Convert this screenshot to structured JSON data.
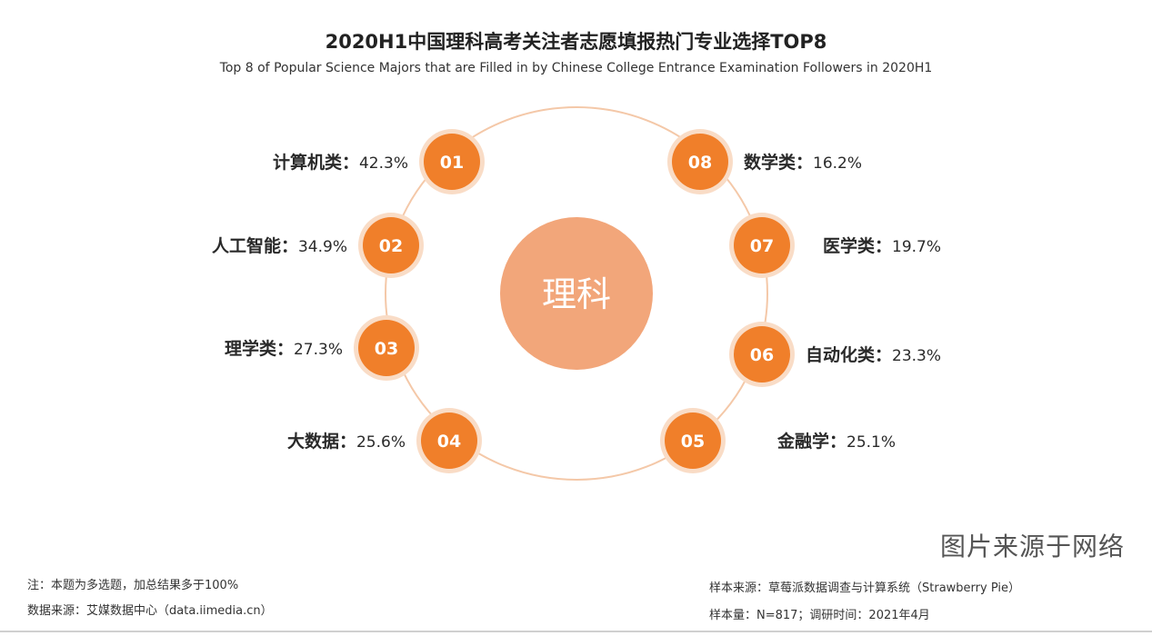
{
  "title": "2020H1中国理科高考关注者志愿填报热门专业选择TOP8",
  "subtitle": "Top 8 of Popular Science Majors that are Filled in by Chinese College Entrance Examination Followers in 2020H1",
  "center_label": "理科",
  "watermark": "图片来源于网络",
  "notes": {
    "note": "注：本题为多选题，加总结果多于100%",
    "source": "数据来源：艾媒数据中心（data.iimedia.cn）",
    "sample_source": "样本来源：草莓派数据调查与计算系统（Strawberry Pie）",
    "sample_size": "样本量：N=817；调研时间：2021年4月"
  },
  "colors": {
    "badge": "#f07f2a",
    "center": "#f2a67a",
    "ring": "#f4c8a8",
    "text": "#2a2a2a"
  },
  "chart_data": {
    "type": "radial-ranking",
    "unit": "%",
    "items": [
      {
        "rank": "01",
        "name": "计算机类",
        "value": 42.3
      },
      {
        "rank": "02",
        "name": "人工智能",
        "value": 34.9
      },
      {
        "rank": "03",
        "name": "理学类",
        "value": 27.3
      },
      {
        "rank": "04",
        "name": "大数据",
        "value": 25.6
      },
      {
        "rank": "05",
        "name": "金融学",
        "value": 25.1
      },
      {
        "rank": "06",
        "name": "自动化类",
        "value": 23.3
      },
      {
        "rank": "07",
        "name": "医学类",
        "value": 19.7
      },
      {
        "rank": "08",
        "name": "数学类",
        "value": 16.2
      }
    ]
  }
}
